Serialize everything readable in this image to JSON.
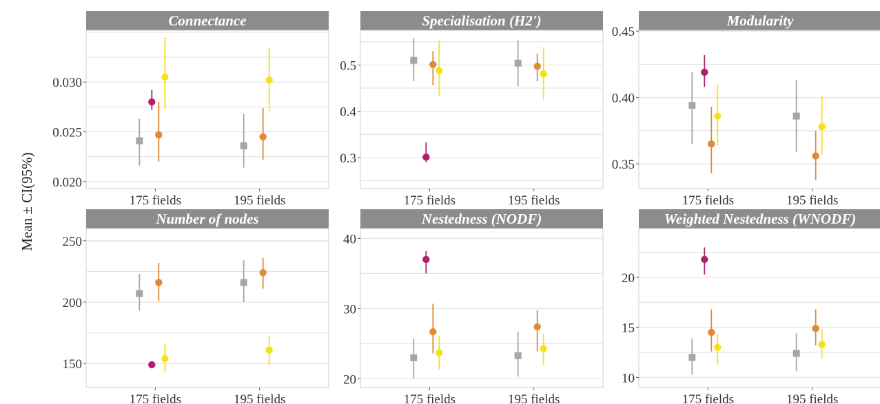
{
  "ylabel": "Mean ± CI(95%)",
  "colors": {
    "grey": "#a6a6a6",
    "magenta": "#b0206e",
    "orange": "#e08a33",
    "yellow": "#f5e11b",
    "strip_bg": "#8c8c8c",
    "grid": "#e3e3e3",
    "strip_text": "#ffffff"
  },
  "chart_data": [
    {
      "type": "scatter",
      "title": "Connectance",
      "categories": [
        "175 fields",
        "195 fields"
      ],
      "ylim": [
        0.0193,
        0.0352
      ],
      "yticks": [
        0.02,
        0.025,
        0.03
      ],
      "ytick_labels": [
        "0.020",
        "0.025",
        "0.030"
      ],
      "grid": true,
      "series": [
        {
          "color": "grey",
          "shape": "square",
          "points": [
            {
              "mean": 0.0241,
              "lo": 0.0216,
              "hi": 0.0263
            },
            {
              "mean": 0.0236,
              "lo": 0.0214,
              "hi": 0.0268
            }
          ]
        },
        {
          "color": "magenta",
          "shape": "circle",
          "points": [
            {
              "mean": 0.028,
              "lo": 0.0272,
              "hi": 0.0292
            },
            null
          ]
        },
        {
          "color": "orange",
          "shape": "circle",
          "points": [
            {
              "mean": 0.0247,
              "lo": 0.022,
              "hi": 0.028
            },
            {
              "mean": 0.0245,
              "lo": 0.0222,
              "hi": 0.0274
            }
          ]
        },
        {
          "color": "yellow",
          "shape": "circle",
          "points": [
            {
              "mean": 0.0305,
              "lo": 0.0273,
              "hi": 0.0345
            },
            {
              "mean": 0.0302,
              "lo": 0.0271,
              "hi": 0.0334
            }
          ]
        }
      ]
    },
    {
      "type": "scatter",
      "title": "Specialisation (H2')",
      "categories": [
        "175 fields",
        "195 fields"
      ],
      "ylim": [
        0.233,
        0.575
      ],
      "yticks": [
        0.3,
        0.4,
        0.5
      ],
      "ytick_labels": [
        "0.3",
        "0.4",
        "0.5"
      ],
      "grid": true,
      "series": [
        {
          "color": "grey",
          "shape": "square",
          "points": [
            {
              "mean": 0.51,
              "lo": 0.465,
              "hi": 0.558
            },
            {
              "mean": 0.504,
              "lo": 0.454,
              "hi": 0.553
            }
          ]
        },
        {
          "color": "magenta",
          "shape": "circle",
          "points": [
            {
              "mean": 0.301,
              "lo": 0.29,
              "hi": 0.333
            },
            null
          ]
        },
        {
          "color": "orange",
          "shape": "circle",
          "points": [
            {
              "mean": 0.501,
              "lo": 0.456,
              "hi": 0.53
            },
            {
              "mean": 0.497,
              "lo": 0.465,
              "hi": 0.525
            }
          ]
        },
        {
          "color": "yellow",
          "shape": "circle",
          "points": [
            {
              "mean": 0.488,
              "lo": 0.432,
              "hi": 0.553
            },
            {
              "mean": 0.481,
              "lo": 0.425,
              "hi": 0.538
            }
          ]
        }
      ]
    },
    {
      "type": "scatter",
      "title": "Modularity",
      "categories": [
        "175 fields",
        "195 fields"
      ],
      "ylim": [
        0.3314,
        0.4506
      ],
      "yticks": [
        0.35,
        0.4,
        0.45
      ],
      "ytick_labels": [
        "0.35",
        "0.40",
        "0.45"
      ],
      "grid": true,
      "series": [
        {
          "color": "grey",
          "shape": "square",
          "points": [
            {
              "mean": 0.394,
              "lo": 0.365,
              "hi": 0.419
            },
            {
              "mean": 0.386,
              "lo": 0.359,
              "hi": 0.413
            }
          ]
        },
        {
          "color": "magenta",
          "shape": "circle",
          "points": [
            {
              "mean": 0.419,
              "lo": 0.408,
              "hi": 0.432
            },
            null
          ]
        },
        {
          "color": "orange",
          "shape": "circle",
          "points": [
            {
              "mean": 0.365,
              "lo": 0.343,
              "hi": 0.393
            },
            {
              "mean": 0.356,
              "lo": 0.338,
              "hi": 0.375
            }
          ]
        },
        {
          "color": "yellow",
          "shape": "circle",
          "points": [
            {
              "mean": 0.386,
              "lo": 0.364,
              "hi": 0.41
            },
            {
              "mean": 0.378,
              "lo": 0.357,
              "hi": 0.401
            }
          ]
        }
      ]
    },
    {
      "type": "scatter",
      "title": "Number of nodes",
      "categories": [
        "175 fields",
        "195 fields"
      ],
      "ylim": [
        130.5,
        260.0
      ],
      "yticks": [
        150,
        200,
        250
      ],
      "ytick_labels": [
        "150",
        "200",
        "250"
      ],
      "grid": true,
      "series": [
        {
          "color": "grey",
          "shape": "square",
          "points": [
            {
              "mean": 207,
              "lo": 193,
              "hi": 223
            },
            {
              "mean": 216,
              "lo": 200,
              "hi": 234
            }
          ]
        },
        {
          "color": "magenta",
          "shape": "circle",
          "points": [
            {
              "mean": 149,
              "lo": 148,
              "hi": 150
            },
            null
          ]
        },
        {
          "color": "orange",
          "shape": "circle",
          "points": [
            {
              "mean": 216,
              "lo": 201,
              "hi": 232
            },
            {
              "mean": 224,
              "lo": 211,
              "hi": 236
            }
          ]
        },
        {
          "color": "yellow",
          "shape": "circle",
          "points": [
            {
              "mean": 154,
              "lo": 143,
              "hi": 166
            },
            {
              "mean": 161,
              "lo": 148,
              "hi": 172
            }
          ]
        }
      ]
    },
    {
      "type": "scatter",
      "title": "Nestedness (NODF)",
      "categories": [
        "175 fields",
        "195 fields"
      ],
      "ylim": [
        18.76,
        41.41
      ],
      "yticks": [
        20,
        30,
        40
      ],
      "ytick_labels": [
        "20",
        "30",
        "40"
      ],
      "grid": true,
      "series": [
        {
          "color": "grey",
          "shape": "square",
          "points": [
            {
              "mean": 23.0,
              "lo": 20.1,
              "hi": 25.7
            },
            {
              "mean": 23.3,
              "lo": 20.3,
              "hi": 26.7
            }
          ]
        },
        {
          "color": "magenta",
          "shape": "circle",
          "points": [
            {
              "mean": 37.0,
              "lo": 35.0,
              "hi": 38.2
            },
            null
          ]
        },
        {
          "color": "orange",
          "shape": "circle",
          "points": [
            {
              "mean": 26.7,
              "lo": 23.6,
              "hi": 30.7
            },
            {
              "mean": 27.4,
              "lo": 23.9,
              "hi": 29.8
            }
          ]
        },
        {
          "color": "yellow",
          "shape": "circle",
          "points": [
            {
              "mean": 23.7,
              "lo": 21.3,
              "hi": 26.1
            },
            {
              "mean": 24.3,
              "lo": 22.0,
              "hi": 26.4
            }
          ]
        }
      ]
    },
    {
      "type": "scatter",
      "title": "Weighted Nestedness (WNODF)",
      "categories": [
        "175 fields",
        "195 fields"
      ],
      "ylim": [
        8.99,
        24.89
      ],
      "yticks": [
        10,
        15,
        20
      ],
      "ytick_labels": [
        "10",
        "15",
        "20"
      ],
      "grid": true,
      "series": [
        {
          "color": "grey",
          "shape": "square",
          "points": [
            {
              "mean": 12.0,
              "lo": 10.3,
              "hi": 13.9
            },
            {
              "mean": 12.4,
              "lo": 10.6,
              "hi": 14.4
            }
          ]
        },
        {
          "color": "magenta",
          "shape": "circle",
          "points": [
            {
              "mean": 21.8,
              "lo": 20.3,
              "hi": 23.0
            },
            null
          ]
        },
        {
          "color": "orange",
          "shape": "circle",
          "points": [
            {
              "mean": 14.5,
              "lo": 12.6,
              "hi": 16.8
            },
            {
              "mean": 14.9,
              "lo": 13.2,
              "hi": 16.8
            }
          ]
        },
        {
          "color": "yellow",
          "shape": "circle",
          "points": [
            {
              "mean": 13.0,
              "lo": 11.3,
              "hi": 14.4
            },
            {
              "mean": 13.3,
              "lo": 11.9,
              "hi": 14.8
            }
          ]
        }
      ]
    }
  ]
}
